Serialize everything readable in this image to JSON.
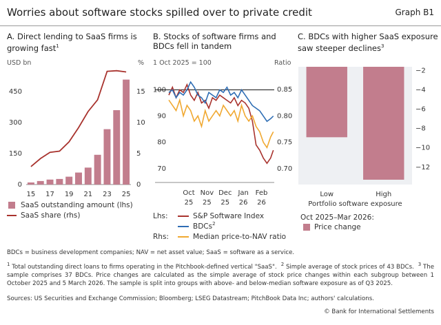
{
  "header": {
    "title": "Worries about software stocks spilled over to private credit",
    "graph_id": "Graph B1"
  },
  "chart_data": [
    {
      "type": "bar",
      "title": "A. Direct lending to SaaS firms is growing fast",
      "title_note": "1",
      "ylabel": "USD bn",
      "y2label": "%",
      "categories": [
        "15",
        null,
        "17",
        null,
        "19",
        null,
        "21",
        null,
        "23",
        null,
        "25"
      ],
      "series": [
        {
          "name": "SaaS outstanding amount (lhs)",
          "type": "bar",
          "color": "#c27d8d",
          "values": [
            10,
            17,
            24,
            27,
            38,
            58,
            82,
            144,
            268,
            360,
            508
          ]
        },
        {
          "name": "SaaS share (rhs)",
          "type": "line",
          "axis": "y2",
          "color": "#a8322d",
          "values": [
            2.9,
            4.2,
            5.2,
            5.4,
            6.9,
            9.2,
            11.8,
            13.7,
            18.3,
            18.4,
            18.2
          ]
        }
      ],
      "ylim": [
        0,
        560
      ],
      "yticks": [
        0,
        150,
        300,
        450
      ],
      "y2lim": [
        0,
        18.7
      ],
      "y2ticks": [
        0,
        5,
        10,
        15
      ]
    },
    {
      "type": "line",
      "title": "B. Stocks of software firms and BDCs fell in tandem",
      "ylabel": "1 Oct 2025 = 100",
      "y2label": "Ratio",
      "x": [
        -0.6,
        -0.4,
        -0.2,
        0,
        0.2,
        0.4,
        0.6,
        0.8,
        1.0,
        1.2,
        1.4,
        1.6,
        1.8,
        2.0,
        2.2,
        2.4,
        2.6,
        2.8,
        3.0,
        3.2,
        3.4,
        3.6,
        3.8,
        4.0,
        4.2,
        4.4,
        4.6,
        4.8,
        5.0,
        5.15
      ],
      "xlim": [
        -0.6,
        5.2
      ],
      "xticks": [
        {
          "value": 0.5,
          "label": "Oct"
        },
        {
          "value": 1.5,
          "label": "Nov"
        },
        {
          "value": 2.5,
          "label": "Dec"
        },
        {
          "value": 3.5,
          "label": "Jan"
        },
        {
          "value": 4.5,
          "label": "Feb"
        }
      ],
      "xtick_years": [
        "25",
        "25",
        "25",
        "26",
        "26"
      ],
      "series": [
        {
          "name": "S&P Software Index",
          "color": "#a8322d",
          "values": [
            98,
            101,
            97,
            100,
            99,
            102,
            98,
            96,
            99,
            95,
            96,
            93,
            97,
            96,
            98,
            97,
            96,
            95,
            97,
            94,
            96,
            95,
            93,
            88,
            79,
            77,
            74,
            72,
            74,
            77
          ]
        },
        {
          "name": "BDCs",
          "note": "2",
          "color": "#2e6db4",
          "values": [
            99,
            100,
            97,
            99,
            98,
            100,
            103,
            101,
            98,
            97,
            95,
            99,
            98,
            97,
            100,
            99,
            101,
            98,
            99,
            97,
            100,
            98,
            96,
            94,
            93,
            92,
            90,
            88,
            89,
            90
          ]
        },
        {
          "name": "Median price-to-NAV ratio",
          "axis": "y2",
          "color": "#f0a830",
          "values": [
            0.83,
            0.82,
            0.81,
            0.83,
            0.8,
            0.82,
            0.81,
            0.79,
            0.8,
            0.78,
            0.81,
            0.79,
            0.8,
            0.81,
            0.8,
            0.82,
            0.81,
            0.8,
            0.81,
            0.79,
            0.82,
            0.8,
            0.79,
            0.8,
            0.78,
            0.77,
            0.75,
            0.74,
            0.76,
            0.77
          ]
        }
      ],
      "ylim": [
        64.7,
        108
      ],
      "yticks": [
        70,
        80,
        90,
        100
      ],
      "y2lim": [
        0.674,
        0.889
      ],
      "y2ticks": [
        {
          "value": 0.7,
          "label": "0.70"
        },
        {
          "value": 0.75,
          "label": "0.75"
        },
        {
          "value": 0.8,
          "label": "0.80"
        },
        0.85
      ],
      "reference_line": 100,
      "lhs_label": "Lhs:",
      "rhs_label": "Rhs:"
    },
    {
      "type": "bar",
      "title": "C. BDCs with higher SaaS exposure saw steeper declines",
      "title_note": "3",
      "categories": [
        "Low",
        "High"
      ],
      "xlabel": "Portfolio software exposure",
      "values": [
        -8.9,
        -13.3
      ],
      "color": "#c27d8d",
      "ylim": [
        -13.8,
        -1.6
      ],
      "yticks": [
        {
          "value": -2,
          "label": "−2"
        },
        {
          "value": -4,
          "label": "−4"
        },
        {
          "value": -6,
          "label": "−6"
        },
        {
          "value": -8,
          "label": "−8"
        },
        {
          "value": -10,
          "label": "−10"
        },
        {
          "value": -12,
          "label": "−12"
        }
      ],
      "yaxis_side": "right",
      "legend_title": "Oct 2025–Mar 2026:",
      "series_name": "Price change"
    }
  ],
  "footer": {
    "abbreviations": "BDCs = business development companies; NAV = net asset value; SaaS = software as a service.",
    "notes": [
      {
        "marker": "1",
        "text": "Total outstanding direct loans to firms operating in the Pitchbook-defined vertical \"SaaS\"."
      },
      {
        "marker": "2",
        "text": "Simple average of stock prices of 43 BDCs."
      },
      {
        "marker": "3",
        "text": "The sample comprises 37 BDCs. Price changes are calculated as the simple average of stock price changes within each subgroup between 1 October 2025 and 5 March 2026. The sample is split into groups with above- and below-median software exposure as of Q3 2025."
      }
    ],
    "sources": "Sources: US Securities and Exchange Commission; Bloomberg; LSEG Datastream; PitchBook Data Inc; authors' calculations.",
    "copyright": "© Bank for International Settlements"
  }
}
